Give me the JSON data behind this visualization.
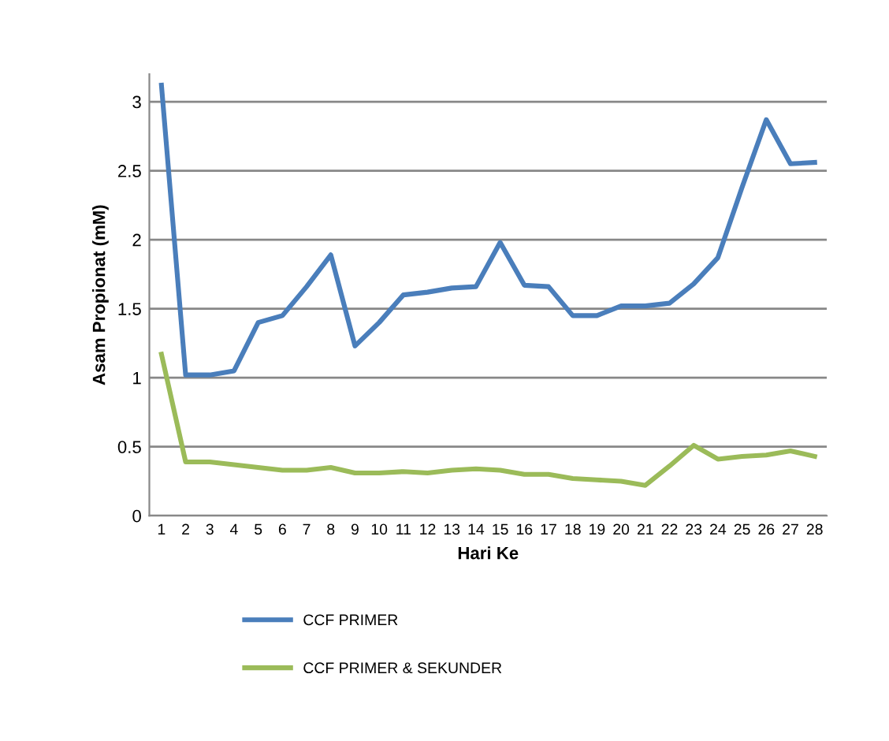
{
  "chart_data": {
    "type": "line",
    "xlabel": "Hari Ke",
    "ylabel": "Asam Propionat (mM)",
    "categories": [
      "1",
      "2",
      "3",
      "4",
      "5",
      "6",
      "7",
      "8",
      "9",
      "10",
      "11",
      "12",
      "13",
      "14",
      "15",
      "16",
      "17",
      "18",
      "19",
      "20",
      "21",
      "22",
      "23",
      "24",
      "25",
      "26",
      "27",
      "28"
    ],
    "series": [
      {
        "name": "CCF PRIMER",
        "color": "#4a7ebb",
        "values": [
          3.12,
          1.02,
          1.02,
          1.05,
          1.4,
          1.45,
          1.66,
          1.89,
          1.23,
          1.4,
          1.6,
          1.62,
          1.65,
          1.66,
          1.98,
          1.67,
          1.66,
          1.45,
          1.45,
          1.52,
          1.52,
          1.54,
          1.68,
          1.87,
          2.38,
          2.87,
          2.55,
          2.56
        ]
      },
      {
        "name": "CCF PRIMER & SEKUNDER",
        "color": "#9bbb59",
        "values": [
          1.17,
          0.39,
          0.39,
          0.37,
          0.35,
          0.33,
          0.33,
          0.35,
          0.31,
          0.31,
          0.32,
          0.31,
          0.33,
          0.34,
          0.33,
          0.3,
          0.3,
          0.27,
          0.26,
          0.25,
          0.22,
          0.36,
          0.51,
          0.41,
          0.43,
          0.44,
          0.47,
          0.43
        ]
      }
    ],
    "ylim": [
      0,
      3.2
    ],
    "yticks": [
      0,
      0.5,
      1,
      1.5,
      2,
      2.5,
      3
    ],
    "grid": "y",
    "legend": "bottom",
    "marker": "none",
    "line_style": "solid"
  }
}
